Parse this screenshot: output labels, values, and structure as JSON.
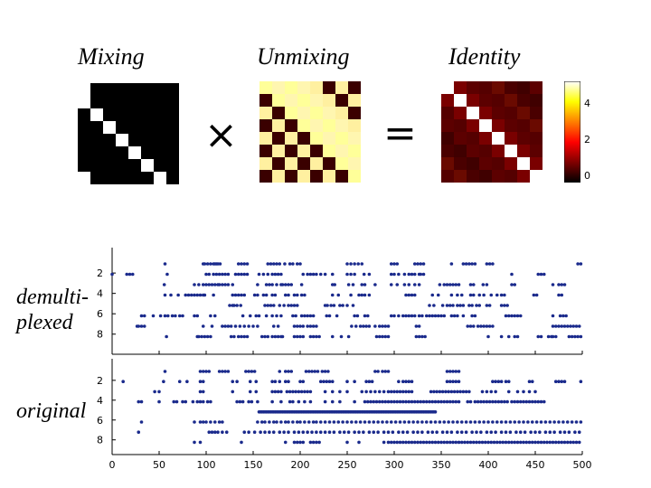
{
  "titles": {
    "mixing": "Mixing",
    "unmixing": "Unmixing",
    "identity": "Identity"
  },
  "operators": {
    "times": "×",
    "equals": "="
  },
  "colorbar": {
    "labels": [
      "4",
      "2",
      "0"
    ],
    "colormap": "hot"
  },
  "side_labels": {
    "demultiplexed_line1": "demulti-",
    "demultiplexed_line2": "plexed",
    "original": "original"
  },
  "colors": {
    "spike": "#1a2a8c",
    "axis": "#000000"
  },
  "chart_data": {
    "type": "scatter",
    "panels": [
      {
        "name": "demultiplexed",
        "yticks": [
          "2",
          "4",
          "6",
          "8"
        ],
        "rows": [
          [
            72,
            124,
            126,
            130,
            134,
            138,
            140,
            142,
            144,
            147,
            172,
            176,
            180,
            184,
            212,
            216,
            220,
            224,
            228,
            235,
            242,
            246,
            252,
            256,
            320,
            325,
            330,
            335,
            340,
            380,
            384,
            388,
            412,
            416,
            420,
            424,
            462,
            478,
            482,
            486,
            490,
            494,
            510,
            514,
            518,
            634,
            638
          ],
          [
            0,
            20,
            24,
            28,
            75,
            128,
            132,
            138,
            142,
            146,
            150,
            154,
            158,
            168,
            172,
            176,
            180,
            184,
            200,
            206,
            212,
            218,
            222,
            226,
            230,
            260,
            266,
            270,
            274,
            278,
            284,
            290,
            300,
            320,
            325,
            330,
            343,
            350,
            380,
            384,
            390,
            398,
            404,
            408,
            412,
            418,
            420,
            424,
            544,
            580,
            584,
            588
          ],
          [
            71,
            112,
            118,
            124,
            128,
            132,
            136,
            140,
            144,
            146,
            150,
            154,
            158,
            164,
            198,
            210,
            214,
            218,
            224,
            230,
            232,
            236,
            240,
            244,
            258,
            300,
            303,
            322,
            328,
            340,
            344,
            358,
            380,
            388,
            398,
            404,
            412,
            418,
            446,
            452,
            456,
            460,
            464,
            468,
            472,
            488,
            492,
            505,
            510,
            544,
            548,
            600,
            608,
            612,
            616
          ],
          [
            72,
            80,
            90,
            100,
            104,
            108,
            112,
            116,
            120,
            124,
            126,
            138,
            164,
            168,
            172,
            176,
            180,
            194,
            198,
            206,
            210,
            218,
            222,
            236,
            240,
            248,
            252,
            258,
            262,
            300,
            308,
            325,
            336,
            340,
            344,
            350,
            400,
            404,
            408,
            412,
            436,
            444,
            462,
            470,
            476,
            488,
            492,
            500,
            506,
            516,
            524,
            530,
            534,
            574,
            578,
            608,
            612
          ],
          [
            160,
            164,
            166,
            170,
            175,
            208,
            212,
            216,
            220,
            228,
            234,
            240,
            244,
            248,
            252,
            290,
            293,
            298,
            302,
            310,
            314,
            320,
            328,
            432,
            438,
            450,
            456,
            460,
            464,
            470,
            474,
            478,
            486,
            490,
            496,
            500,
            510,
            514,
            530,
            534,
            538
          ],
          [
            40,
            44,
            56,
            66,
            72,
            76,
            82,
            86,
            92,
            96,
            112,
            116,
            134,
            140,
            178,
            188,
            196,
            200,
            210,
            218,
            224,
            230,
            246,
            250,
            258,
            262,
            266,
            270,
            274,
            292,
            296,
            306,
            330,
            334,
            344,
            348,
            380,
            384,
            390,
            396,
            400,
            404,
            408,
            412,
            418,
            422,
            428,
            432,
            436,
            440,
            444,
            448,
            452,
            462,
            466,
            470,
            478,
            490,
            494,
            536,
            540,
            544,
            548,
            552,
            556,
            600,
            610,
            614,
            618
          ],
          [
            34,
            36,
            40,
            44,
            124,
            136,
            150,
            154,
            158,
            162,
            168,
            174,
            180,
            186,
            192,
            198,
            220,
            226,
            248,
            252,
            256,
            260,
            266,
            270,
            274,
            278,
            326,
            332,
            338,
            342,
            346,
            350,
            358,
            364,
            368,
            372,
            376,
            414,
            418,
            484,
            488,
            492,
            498,
            502,
            506,
            510,
            514,
            518,
            600,
            604,
            608,
            612,
            616,
            620,
            624,
            628,
            632,
            636
          ],
          [
            74,
            116,
            118,
            122,
            126,
            130,
            134,
            162,
            166,
            172,
            176,
            180,
            184,
            204,
            208,
            212,
            218,
            222,
            226,
            230,
            232,
            248,
            252,
            256,
            260,
            270,
            274,
            278,
            282,
            300,
            312,
            322,
            360,
            364,
            368,
            372,
            376,
            414,
            418,
            422,
            426,
            512,
            530,
            540,
            548,
            552,
            580,
            584,
            594,
            598,
            600,
            604,
            622,
            626,
            630,
            634,
            638
          ]
        ]
      },
      {
        "name": "original",
        "yticks": [
          "2",
          "4",
          "6",
          "8"
        ],
        "rows": [
          [
            72,
            120,
            124,
            128,
            132,
            146,
            150,
            154,
            158,
            182,
            186,
            190,
            194,
            228,
            236,
            240,
            244,
            264,
            268,
            272,
            276,
            280,
            286,
            290,
            294,
            358,
            362,
            368,
            372,
            376,
            456,
            460,
            464,
            468,
            472
          ],
          [
            15,
            70,
            92,
            102,
            120,
            124,
            164,
            170,
            188,
            196,
            218,
            222,
            228,
            236,
            240,
            256,
            260,
            284,
            288,
            292,
            296,
            300,
            320,
            330,
            346,
            350,
            354,
            390,
            396,
            400,
            404,
            408,
            456,
            460,
            464,
            468,
            472,
            518,
            522,
            526,
            530,
            536,
            540,
            568,
            572,
            604,
            608,
            612,
            616,
            638
          ],
          [
            58,
            64,
            120,
            124,
            164,
            188,
            196,
            218,
            222,
            226,
            230,
            238,
            242,
            246,
            250,
            254,
            258,
            262,
            266,
            270,
            290,
            300,
            310,
            320,
            340,
            346,
            352,
            358,
            364,
            370,
            376,
            380,
            384,
            388,
            392,
            396,
            400,
            404,
            408,
            434,
            438,
            442,
            446,
            450,
            454,
            458,
            462,
            466,
            470,
            474,
            478,
            482,
            486,
            504,
            510,
            516,
            522,
            540,
            552,
            560,
            568,
            576
          ],
          [
            36,
            40,
            64,
            84,
            88,
            96,
            100,
            110,
            116,
            120,
            124,
            130,
            134,
            170,
            174,
            178,
            186,
            190,
            198,
            218,
            230,
            242,
            246,
            254,
            262,
            270,
            290,
            300,
            310,
            330,
            344,
            348,
            352,
            356,
            360,
            364,
            368,
            372,
            376,
            380,
            384,
            388,
            392,
            396,
            400,
            404,
            408,
            412,
            416,
            420,
            424,
            428,
            432,
            436,
            440,
            444,
            448,
            452,
            456,
            460,
            464,
            468,
            472,
            484,
            488,
            494,
            498,
            502,
            506,
            510,
            514,
            518,
            522,
            526,
            530,
            534,
            538,
            544,
            548,
            552,
            556,
            560,
            564,
            568,
            572,
            576,
            580,
            584,
            588
          ],
          [
            200,
            202,
            204,
            206,
            208,
            210,
            212,
            214,
            216,
            218,
            220,
            222,
            224,
            226,
            228,
            230,
            232,
            234,
            236,
            238,
            240,
            242,
            244,
            246,
            248,
            250,
            252,
            254,
            256,
            258,
            260,
            262,
            264,
            266,
            268,
            270,
            272,
            274,
            276,
            278,
            280,
            282,
            284,
            286,
            288,
            290,
            292,
            294,
            296,
            298,
            300,
            302,
            304,
            306,
            308,
            310,
            312,
            314,
            316,
            318,
            320,
            322,
            324,
            326,
            328,
            330,
            332,
            334,
            336,
            338,
            340,
            342,
            344,
            346,
            348,
            350,
            352,
            354,
            356,
            358,
            360,
            362,
            364,
            366,
            368,
            370,
            372,
            374,
            376,
            378,
            380,
            382,
            384,
            386,
            388,
            390,
            392,
            394,
            396,
            398,
            400,
            402,
            404,
            406,
            408,
            410,
            412,
            414,
            416,
            418,
            420,
            422,
            424,
            426,
            428,
            430,
            432,
            434,
            436,
            438,
            440
          ],
          [
            40,
            112,
            120,
            124,
            128,
            134,
            140,
            146,
            150,
            198,
            204,
            208,
            214,
            220,
            224,
            230,
            236,
            240,
            246,
            252,
            256,
            262,
            268,
            274,
            278,
            284,
            290,
            296,
            302,
            308,
            314,
            320,
            326,
            332,
            338,
            344,
            350,
            356,
            362,
            368,
            374,
            380,
            386,
            392,
            398,
            404,
            410,
            416,
            422,
            428,
            434,
            440,
            446,
            452,
            458,
            464,
            470,
            476,
            482,
            488,
            494,
            500,
            506,
            512,
            518,
            524,
            530,
            536,
            542,
            548,
            554,
            560,
            566,
            572,
            578,
            584,
            590,
            596,
            602,
            608,
            614,
            620,
            626,
            632,
            638
          ],
          [
            36,
            132,
            136,
            140,
            144,
            150,
            156,
            180,
            186,
            194,
            202,
            208,
            214,
            220,
            228,
            234,
            240,
            248,
            254,
            260,
            266,
            272,
            278,
            284,
            290,
            296,
            302,
            310,
            316,
            322,
            330,
            336,
            342,
            350,
            356,
            362,
            370,
            376,
            382,
            390,
            396,
            402,
            410,
            416,
            422,
            430,
            436,
            442,
            450,
            456,
            462,
            470,
            476,
            482,
            490,
            496,
            502,
            510,
            516,
            522,
            530,
            536,
            542,
            550,
            556,
            562,
            570,
            576,
            582,
            590,
            596,
            602,
            610,
            616,
            622,
            630,
            636
          ],
          [
            112,
            120,
            176,
            236,
            248,
            252,
            256,
            260,
            270,
            274,
            278,
            282,
            320,
            336,
            370,
            376,
            380,
            384,
            388,
            392,
            396,
            400,
            404,
            408,
            412,
            416,
            420,
            424,
            428,
            432,
            436,
            440,
            444,
            448,
            452,
            456,
            460,
            464,
            468,
            472,
            476,
            480,
            484,
            488,
            492,
            496,
            500,
            504,
            508,
            512,
            516,
            520,
            524,
            528,
            532,
            536,
            540,
            544,
            548,
            552,
            556,
            560,
            564,
            568,
            572,
            576,
            580,
            584,
            588,
            592,
            596,
            600,
            604,
            608,
            612,
            616,
            620,
            624,
            628,
            632,
            636
          ]
        ]
      }
    ],
    "xticks": [
      "0",
      "50",
      "100",
      "150",
      "200",
      "250",
      "300",
      "350",
      "400",
      "450",
      "500"
    ],
    "xlim": [
      0,
      500
    ]
  }
}
